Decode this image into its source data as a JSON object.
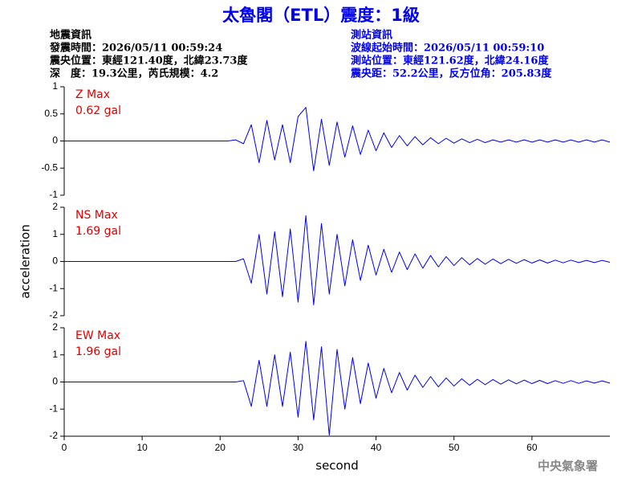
{
  "header": {
    "title": "太魯閣（ETL）震度：1級",
    "earthquake": [
      "地震資訊",
      "發震時間：2026/05/11 00:59:24",
      "震央位置：東經121.40度，北緯23.73度",
      "深　度：19.3公里，芮氏規模：4.2"
    ],
    "station": [
      "測站資訊",
      "波線起始時間：2026/05/11 00:59:10",
      "測站位置：東經121.62度，北緯24.16度",
      "震央距：52.2公里，反方位角：205.83度"
    ],
    "watermark": "中央氣象署"
  },
  "chart_data": [
    {
      "type": "line",
      "label": "Z Max",
      "max_label": "0.62 gal",
      "color": "#0000ee",
      "xlim": [
        0,
        70
      ],
      "ylim": [
        -1,
        1
      ],
      "yticks": [
        -1,
        -0.5,
        0,
        0.5,
        1
      ],
      "x": [
        0,
        1,
        2,
        3,
        4,
        5,
        6,
        7,
        8,
        9,
        10,
        11,
        12,
        13,
        14,
        15,
        16,
        17,
        18,
        19,
        20,
        21,
        22,
        23,
        24,
        25,
        26,
        27,
        28,
        29,
        30,
        31,
        32,
        33,
        34,
        35,
        36,
        37,
        38,
        39,
        40,
        41,
        42,
        43,
        44,
        45,
        46,
        47,
        48,
        49,
        50,
        51,
        52,
        53,
        54,
        55,
        56,
        57,
        58,
        59,
        60,
        61,
        62,
        63,
        64,
        65,
        66,
        67,
        68,
        69,
        70
      ],
      "values": [
        0,
        0,
        0,
        0,
        0,
        0,
        0,
        0,
        0,
        0,
        0,
        0,
        0,
        0,
        0,
        0,
        0,
        0,
        0,
        0,
        0,
        0,
        0.02,
        -0.05,
        0.3,
        -0.4,
        0.38,
        -0.35,
        0.3,
        -0.4,
        0.45,
        0.62,
        -0.55,
        0.4,
        -0.45,
        0.35,
        -0.3,
        0.28,
        -0.25,
        0.2,
        -0.18,
        0.15,
        -0.12,
        0.1,
        -0.09,
        0.08,
        -0.07,
        0.06,
        -0.05,
        0.05,
        -0.04,
        0.04,
        -0.03,
        0.03,
        -0.03,
        0.02,
        -0.02,
        0.02,
        -0.02,
        0.02,
        -0.02,
        0.02,
        -0.02,
        0.02,
        -0.02,
        0.02,
        -0.02,
        0.02,
        -0.02,
        0.02,
        -0.02
      ]
    },
    {
      "type": "line",
      "label": "NS Max",
      "max_label": "1.69 gal",
      "color": "#0000ee",
      "ylabel": "acceleration",
      "xlim": [
        0,
        70
      ],
      "ylim": [
        -2,
        2
      ],
      "yticks": [
        -2,
        -1,
        0,
        1,
        2
      ],
      "x": [
        0,
        1,
        2,
        3,
        4,
        5,
        6,
        7,
        8,
        9,
        10,
        11,
        12,
        13,
        14,
        15,
        16,
        17,
        18,
        19,
        20,
        21,
        22,
        23,
        24,
        25,
        26,
        27,
        28,
        29,
        30,
        31,
        32,
        33,
        34,
        35,
        36,
        37,
        38,
        39,
        40,
        41,
        42,
        43,
        44,
        45,
        46,
        47,
        48,
        49,
        50,
        51,
        52,
        53,
        54,
        55,
        56,
        57,
        58,
        59,
        60,
        61,
        62,
        63,
        64,
        65,
        66,
        67,
        68,
        69,
        70
      ],
      "values": [
        0,
        0,
        0,
        0,
        0,
        0,
        0,
        0,
        0,
        0,
        0,
        0,
        0,
        0,
        0,
        0,
        0,
        0,
        0,
        0,
        0,
        0,
        0,
        0.1,
        -0.8,
        1.0,
        -1.2,
        1.1,
        -1.3,
        1.2,
        -1.5,
        1.69,
        -1.6,
        1.4,
        -1.2,
        1.0,
        -0.9,
        0.8,
        -0.7,
        0.6,
        -0.5,
        0.45,
        -0.4,
        0.35,
        -0.3,
        0.28,
        -0.25,
        0.22,
        -0.2,
        0.18,
        -0.15,
        0.14,
        -0.12,
        0.11,
        -0.1,
        0.09,
        -0.08,
        0.08,
        -0.07,
        0.07,
        -0.06,
        0.06,
        -0.06,
        0.05,
        -0.05,
        0.05,
        -0.04,
        0.04,
        -0.04,
        0.04,
        -0.03
      ]
    },
    {
      "type": "line",
      "label": "EW Max",
      "max_label": "1.96 gal",
      "color": "#0000ee",
      "xlabel": "second",
      "xlim": [
        0,
        70
      ],
      "ylim": [
        -2,
        2
      ],
      "yticks": [
        -2,
        -1,
        0,
        1,
        2
      ],
      "xticks": [
        0,
        10,
        20,
        30,
        40,
        50,
        60
      ],
      "x": [
        0,
        1,
        2,
        3,
        4,
        5,
        6,
        7,
        8,
        9,
        10,
        11,
        12,
        13,
        14,
        15,
        16,
        17,
        18,
        19,
        20,
        21,
        22,
        23,
        24,
        25,
        26,
        27,
        28,
        29,
        30,
        31,
        32,
        33,
        34,
        35,
        36,
        37,
        38,
        39,
        40,
        41,
        42,
        43,
        44,
        45,
        46,
        47,
        48,
        49,
        50,
        51,
        52,
        53,
        54,
        55,
        56,
        57,
        58,
        59,
        60,
        61,
        62,
        63,
        64,
        65,
        66,
        67,
        68,
        69,
        70
      ],
      "values": [
        0,
        0,
        0,
        0,
        0,
        0,
        0,
        0,
        0,
        0,
        0,
        0,
        0,
        0,
        0,
        0,
        0,
        0,
        0,
        0,
        0,
        0,
        0,
        0.05,
        -0.9,
        0.8,
        -0.9,
        1.0,
        -0.9,
        1.1,
        -1.3,
        1.5,
        -1.4,
        1.3,
        -1.96,
        1.2,
        -1.0,
        0.9,
        -0.8,
        0.7,
        -0.6,
        0.5,
        -0.4,
        0.35,
        -0.3,
        0.25,
        -0.2,
        0.2,
        -0.18,
        0.15,
        -0.15,
        0.12,
        -0.12,
        0.1,
        -0.1,
        0.09,
        -0.08,
        0.08,
        -0.07,
        0.07,
        -0.06,
        0.06,
        -0.06,
        0.05,
        -0.05,
        0.05,
        -0.05,
        0.04,
        -0.04,
        0.04,
        -0.04
      ]
    }
  ]
}
